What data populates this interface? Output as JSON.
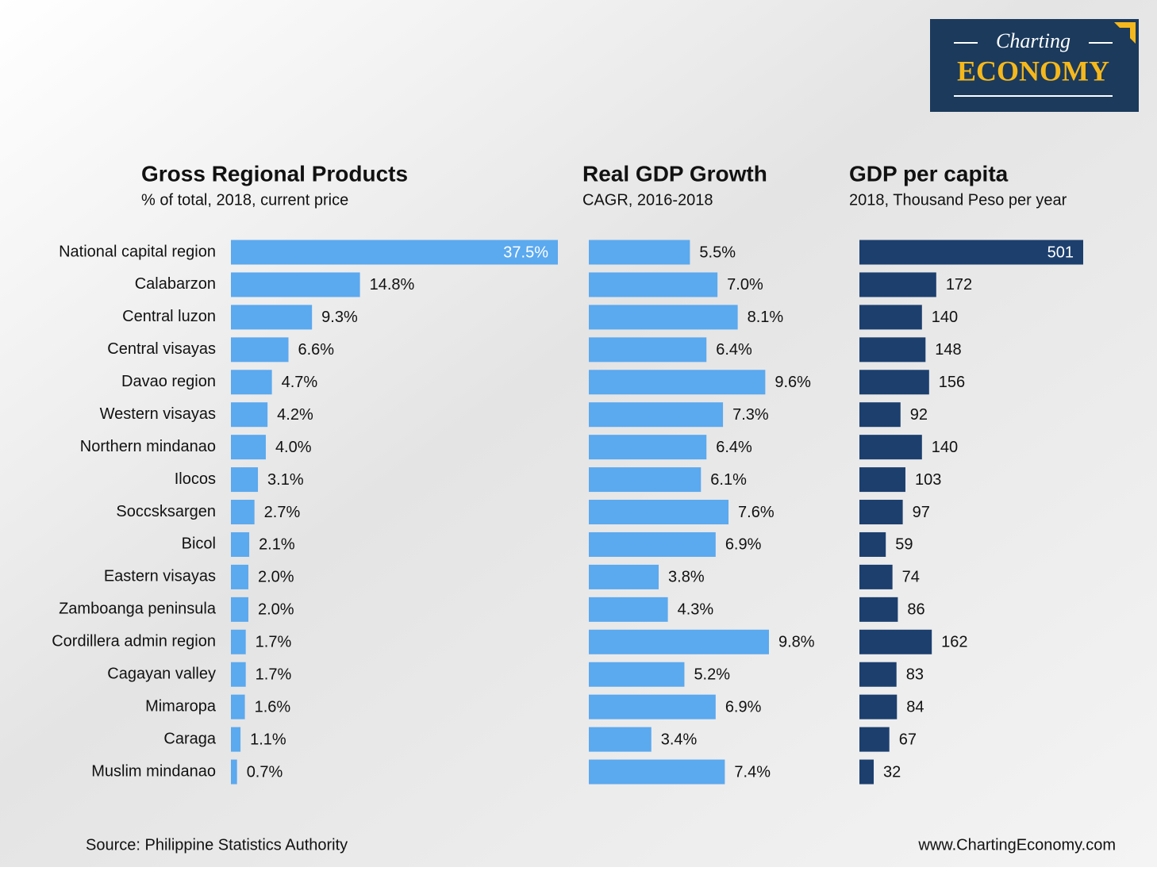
{
  "chart_data": [
    {
      "type": "bar",
      "title": "Gross Regional Products",
      "subtitle": "% of total, 2018, current price",
      "color": "#5ba9ef",
      "categories": [
        "National capital region",
        "Calabarzon",
        "Central luzon",
        "Central visayas",
        "Davao region",
        "Western visayas",
        "Northern mindanao",
        "Ilocos",
        "Soccsksargen",
        "Bicol",
        "Eastern visayas",
        "Zamboanga peninsula",
        "Cordillera admin region",
        "Cagayan valley",
        "Mimaropa",
        "Caraga",
        "Muslim mindanao"
      ],
      "values": [
        37.5,
        14.8,
        9.3,
        6.6,
        4.7,
        4.2,
        4.0,
        3.1,
        2.7,
        2.1,
        2.0,
        2.0,
        1.7,
        1.7,
        1.6,
        1.1,
        0.7
      ],
      "value_labels": [
        "37.5%",
        "14.8%",
        "9.3%",
        "6.6%",
        "4.7%",
        "4.2%",
        "4.0%",
        "3.1%",
        "2.7%",
        "2.1%",
        "2.0%",
        "2.0%",
        "1.7%",
        "1.7%",
        "1.6%",
        "1.1%",
        "0.7%"
      ]
    },
    {
      "type": "bar",
      "title": "Real GDP Growth",
      "subtitle": "CAGR, 2016-2018",
      "color": "#5ba9ef",
      "values": [
        5.5,
        7.0,
        8.1,
        6.4,
        9.6,
        7.3,
        6.4,
        6.1,
        7.6,
        6.9,
        3.8,
        4.3,
        9.8,
        5.2,
        6.9,
        3.4,
        7.4
      ],
      "value_labels": [
        "5.5%",
        "7.0%",
        "8.1%",
        "6.4%",
        "9.6%",
        "7.3%",
        "6.4%",
        "6.1%",
        "7.6%",
        "6.9%",
        "3.8%",
        "4.3%",
        "9.8%",
        "5.2%",
        "6.9%",
        "3.4%",
        "7.4%"
      ]
    },
    {
      "type": "bar",
      "title": "GDP per capita",
      "subtitle": "2018, Thousand Peso per year",
      "color": "#1c3f6e",
      "values": [
        501,
        172,
        140,
        148,
        156,
        92,
        140,
        103,
        97,
        59,
        74,
        86,
        162,
        83,
        84,
        67,
        32
      ]
    }
  ],
  "logo": {
    "top": "Charting",
    "bottom": "ECONOMY"
  },
  "source": "Source: Philippine Statistics Authority",
  "website": "www.ChartingEconomy.com"
}
